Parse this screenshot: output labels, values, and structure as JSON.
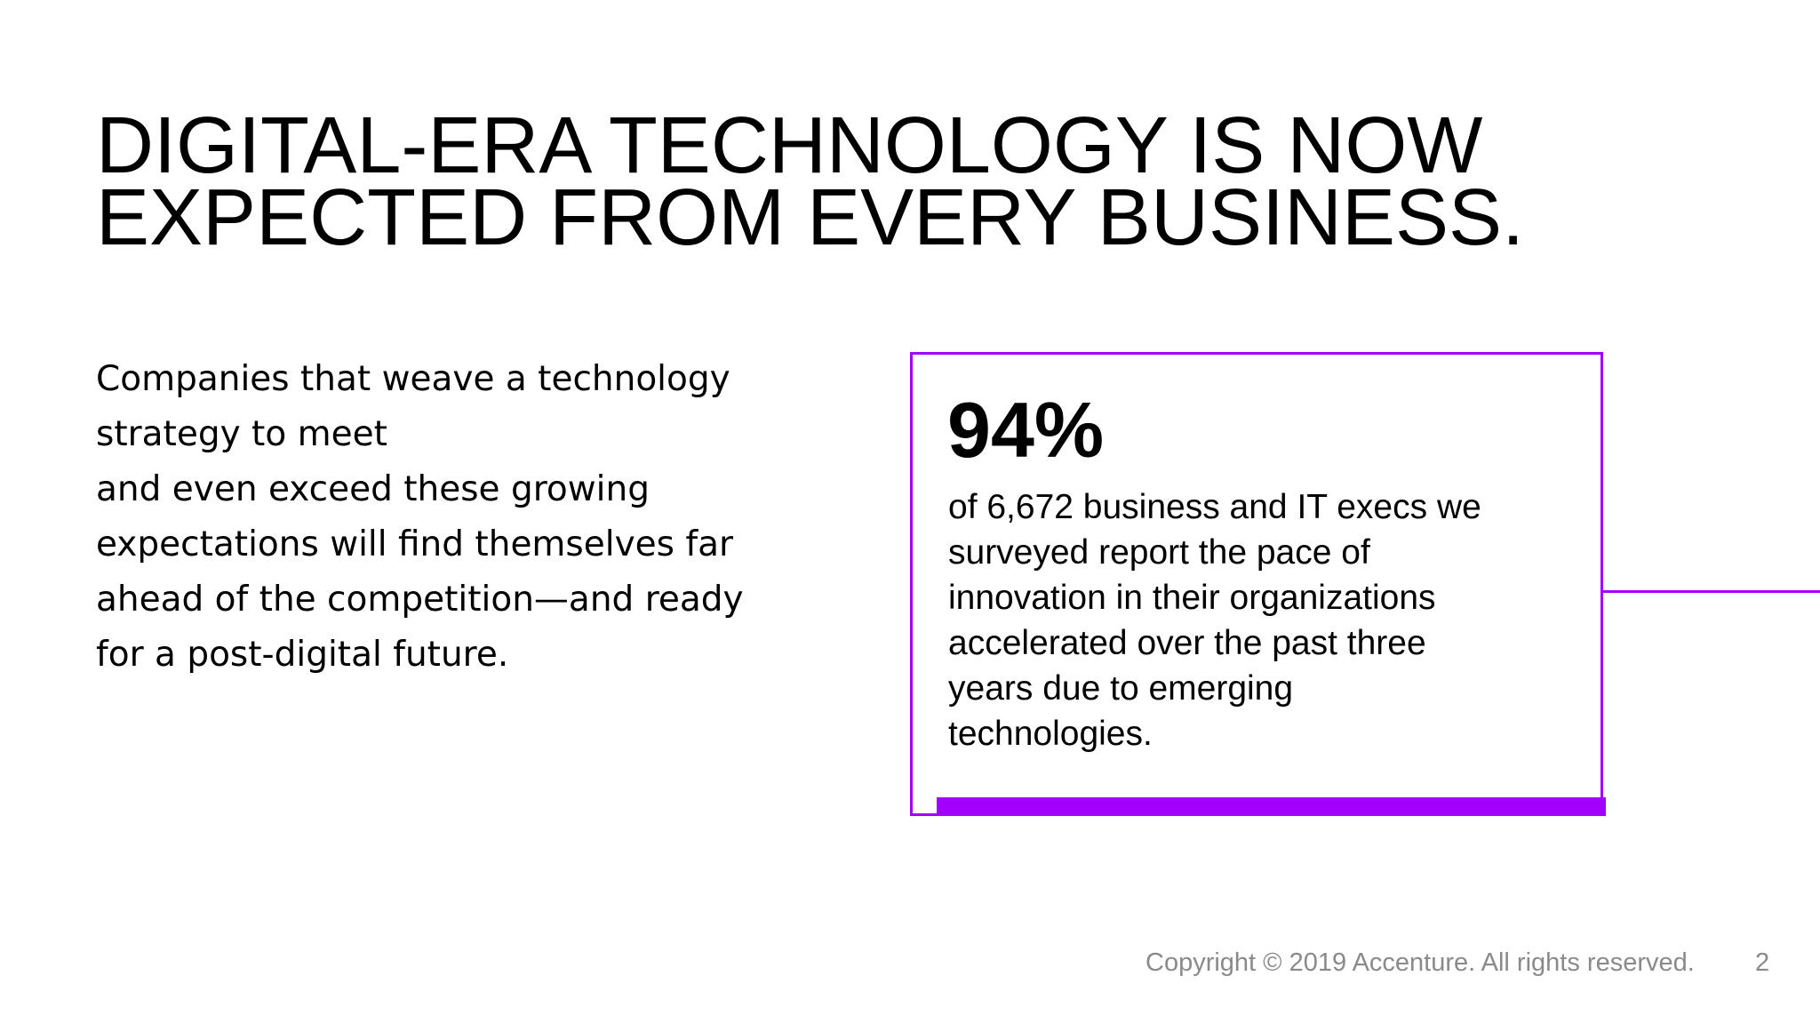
{
  "header": {
    "title_lines": [
      "DIGITAL-ERA TECHNOLOGY IS NOW",
      "EXPECTED FROM EVERY BUSINESS."
    ]
  },
  "body": {
    "lines": [
      "Companies that weave a technology",
      "strategy to meet",
      "and even exceed these growing",
      "expectations will find themselves far",
      "ahead of the competition—and ready",
      "for a post-digital future."
    ]
  },
  "callout": {
    "stat": "94%",
    "lines": [
      "of 6,672 business and IT execs we",
      "surveyed report the pace of",
      "innovation in their organizations",
      "accelerated over the past three",
      "years due to emerging",
      "technologies."
    ]
  },
  "footer": {
    "copyright": "Copyright © 2019 Accenture. All rights reserved.",
    "page_number": "2"
  }
}
